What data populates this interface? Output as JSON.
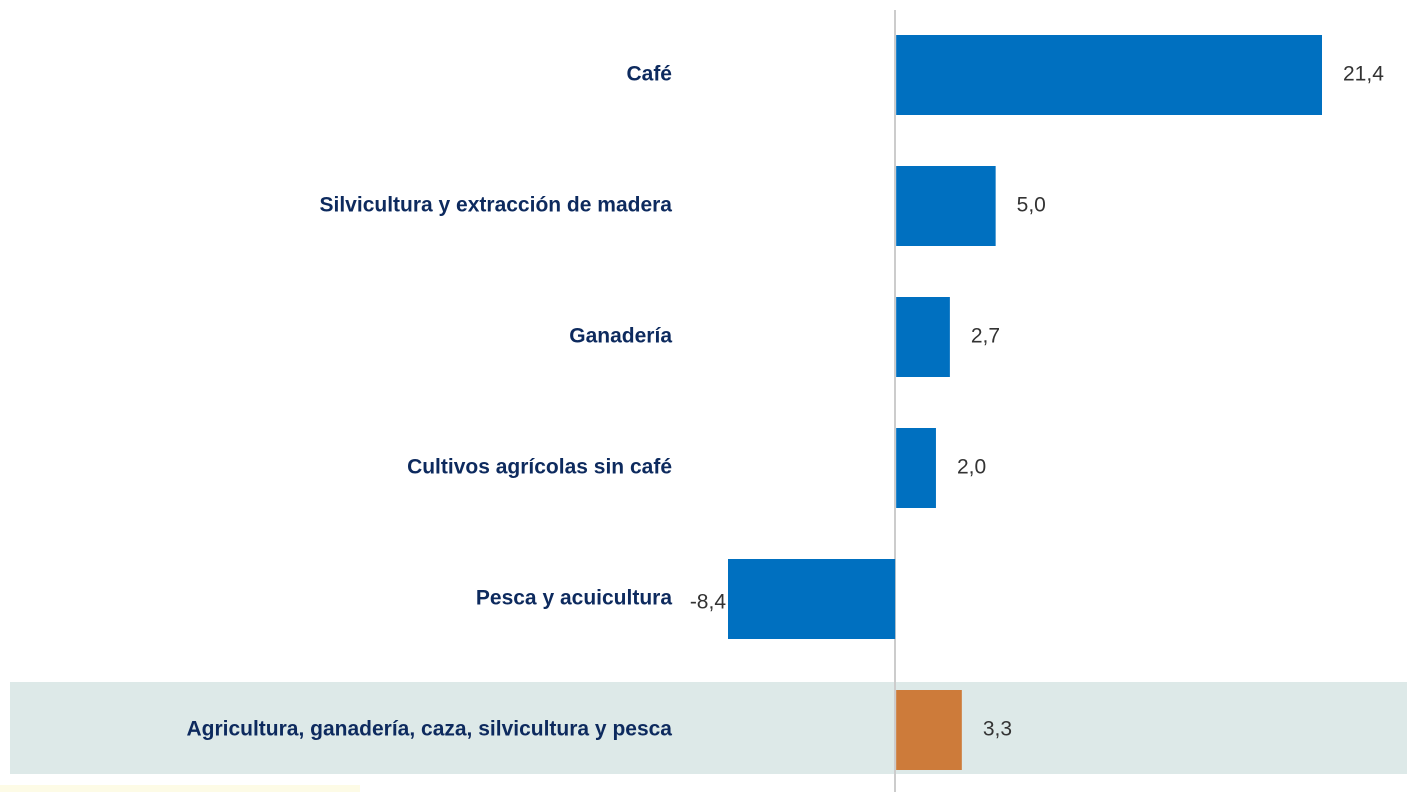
{
  "chart_data": {
    "type": "bar",
    "orientation": "horizontal",
    "categories": [
      "Café",
      "Silvicultura y extracción de madera",
      "Ganadería",
      "Cultivos agrícolas sin café",
      "Pesca y acuicultura",
      "Agricultura, ganadería, caza, silvicultura y pesca"
    ],
    "values": [
      21.4,
      5.0,
      2.7,
      2.0,
      -8.4,
      3.3
    ],
    "value_labels": [
      "21,4",
      "5,0",
      "2,7",
      "2,0",
      "-8,4",
      "3,3"
    ],
    "colors": [
      "#0070c0",
      "#0070c0",
      "#0070c0",
      "#0070c0",
      "#0070c0",
      "#cd7b3a"
    ]
  }
}
